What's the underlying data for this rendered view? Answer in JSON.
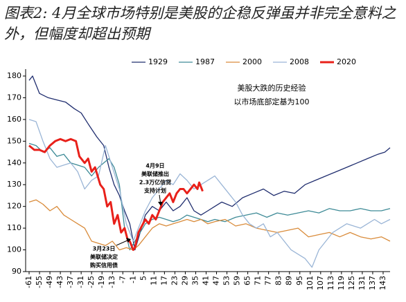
{
  "chart_data": {
    "type": "line",
    "title": "图表2: 4月全球市场特别是美股的企稳反弹虽并非完全意料之外，但幅度却超出预期",
    "xlim": [
      -63,
      147
    ],
    "ylim": [
      90,
      180
    ],
    "xticks": [
      -61,
      -55,
      -49,
      -43,
      -37,
      -31,
      -25,
      -19,
      -13,
      -7,
      -1,
      5,
      11,
      17,
      23,
      29,
      35,
      41,
      47,
      53,
      59,
      65,
      71,
      77,
      83,
      89,
      95,
      101,
      107,
      113,
      119,
      125,
      131,
      137,
      143
    ],
    "yticks": [
      90,
      100,
      110,
      120,
      130,
      140,
      150,
      160,
      170,
      180
    ],
    "legend": "top",
    "series": [
      {
        "name": "1929",
        "color": "#1f2d6e",
        "width": 1.3,
        "x": [
          -61,
          -59,
          -55,
          -50,
          -45,
          -40,
          -35,
          -31,
          -27,
          -22,
          -18,
          -15,
          -12,
          -9,
          -6,
          -3,
          0,
          3,
          6,
          10,
          14,
          18,
          22,
          26,
          30,
          34,
          38,
          42,
          46,
          50,
          56,
          62,
          68,
          74,
          80,
          86,
          92,
          98,
          104,
          110,
          116,
          122,
          128,
          134,
          140,
          144,
          147
        ],
        "values": [
          178,
          180,
          172,
          170,
          169,
          168,
          165,
          163,
          158,
          152,
          148,
          138,
          130,
          125,
          118,
          112,
          100,
          108,
          116,
          120,
          118,
          122,
          118,
          120,
          124,
          118,
          116,
          118,
          120,
          122,
          120,
          124,
          126,
          128,
          125,
          127,
          126,
          130,
          132,
          134,
          136,
          138,
          140,
          142,
          144,
          145,
          147
        ]
      },
      {
        "name": "1987",
        "color": "#3d8a96",
        "width": 1.3,
        "x": [
          -61,
          -57,
          -53,
          -49,
          -45,
          -41,
          -37,
          -33,
          -29,
          -25,
          -21,
          -18,
          -15,
          -12,
          -9,
          -6,
          -3,
          0,
          3,
          6,
          10,
          14,
          18,
          22,
          26,
          30,
          34,
          38,
          42,
          46,
          52,
          58,
          64,
          70,
          76,
          82,
          88,
          94,
          100,
          106,
          112,
          118,
          124,
          130,
          136,
          142,
          147
        ],
        "values": [
          149,
          148,
          145,
          147,
          143,
          144,
          140,
          139,
          138,
          134,
          138,
          140,
          142,
          138,
          130,
          110,
          100,
          104,
          108,
          112,
          114,
          115,
          114,
          113,
          114,
          116,
          115,
          114,
          113,
          114,
          113,
          115,
          116,
          117,
          115,
          117,
          116,
          117,
          118,
          117,
          119,
          118,
          118,
          119,
          118,
          118,
          119
        ]
      },
      {
        "name": "2000",
        "color": "#d98b3a",
        "width": 1.3,
        "x": [
          -61,
          -57,
          -53,
          -49,
          -45,
          -41,
          -37,
          -33,
          -29,
          -25,
          -21,
          -17,
          -13,
          -9,
          -5,
          -1,
          2,
          6,
          10,
          14,
          18,
          22,
          26,
          30,
          34,
          38,
          42,
          46,
          52,
          58,
          64,
          70,
          76,
          82,
          88,
          94,
          100,
          106,
          112,
          118,
          124,
          130,
          136,
          142,
          147
        ],
        "values": [
          122,
          123,
          121,
          118,
          120,
          116,
          114,
          112,
          110,
          104,
          103,
          102,
          104,
          100,
          101,
          100,
          102,
          106,
          110,
          112,
          111,
          112,
          113,
          114,
          113,
          114,
          112,
          113,
          114,
          111,
          112,
          110,
          109,
          108,
          109,
          110,
          106,
          107,
          108,
          106,
          108,
          106,
          105,
          106,
          104
        ]
      },
      {
        "name": "2008",
        "color": "#9ab5d6",
        "width": 1.3,
        "x": [
          -61,
          -57,
          -53,
          -49,
          -45,
          -41,
          -37,
          -33,
          -29,
          -25,
          -21,
          -17,
          -13,
          -9,
          -5,
          -1,
          2,
          6,
          10,
          14,
          18,
          22,
          26,
          30,
          34,
          38,
          42,
          46,
          50,
          54,
          58,
          62,
          66,
          70,
          74,
          78,
          82,
          86,
          90,
          94,
          98,
          102,
          106,
          110,
          114,
          118,
          122,
          126,
          130,
          134,
          138,
          142,
          147
        ],
        "values": [
          160,
          159,
          150,
          142,
          138,
          139,
          140,
          136,
          128,
          132,
          134,
          148,
          138,
          128,
          112,
          104,
          110,
          118,
          124,
          128,
          132,
          130,
          135,
          132,
          128,
          130,
          132,
          134,
          130,
          126,
          122,
          116,
          112,
          110,
          112,
          106,
          108,
          104,
          100,
          98,
          96,
          92,
          100,
          104,
          108,
          110,
          112,
          111,
          110,
          112,
          114,
          112,
          114
        ]
      },
      {
        "name": "2020",
        "color": "#e8201a",
        "width": 3,
        "x": [
          -61,
          -58,
          -55,
          -52,
          -49,
          -46,
          -43,
          -40,
          -37,
          -34,
          -32,
          -29,
          -27,
          -25,
          -23,
          -20,
          -18,
          -16,
          -14,
          -12,
          -10,
          -8,
          -6,
          -4,
          -3,
          -1,
          0,
          2,
          4,
          6,
          8,
          10,
          12,
          14,
          16,
          18,
          20,
          22,
          24,
          26,
          28,
          30,
          32,
          34,
          36,
          37,
          39
        ],
        "values": [
          148,
          146,
          146,
          145,
          148,
          150,
          151,
          150,
          151,
          150,
          143,
          140,
          142,
          136,
          138,
          130,
          128,
          120,
          122,
          112,
          116,
          108,
          110,
          104,
          104,
          100,
          101,
          108,
          111,
          114,
          112,
          116,
          114,
          118,
          122,
          124,
          126,
          122,
          126,
          128,
          128,
          126,
          128,
          130,
          128,
          131,
          127
        ]
      }
    ],
    "annotations": [
      {
        "lines": [
          "美股大跌的历史经验",
          "以市场底部定基为100"
        ],
        "color": "#000"
      },
      {
        "lines": [
          "4月9日",
          "美联储推出",
          "2.3万亿信贷",
          "支持计划"
        ],
        "color": "#e8201a"
      },
      {
        "lines": [
          "3月23日",
          "美联储决定",
          "购买信用债"
        ],
        "color": "#e8201a"
      }
    ]
  }
}
